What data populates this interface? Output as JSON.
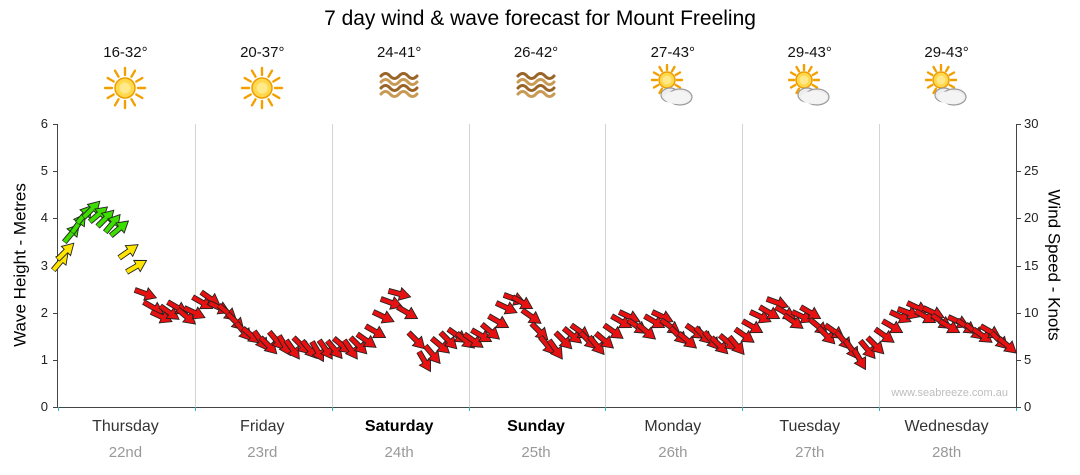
{
  "title": "7 day wind & wave forecast for Mount Freeling",
  "watermark": "www.seabreeze.com.au",
  "days": [
    {
      "name": "Thursday",
      "date": "22nd",
      "temp": "16-32°",
      "icon": "sunny",
      "bold": false
    },
    {
      "name": "Friday",
      "date": "23rd",
      "temp": "20-37°",
      "icon": "sunny",
      "bold": false
    },
    {
      "name": "Saturday",
      "date": "24th",
      "temp": "24-41°",
      "icon": "heat",
      "bold": true
    },
    {
      "name": "Sunday",
      "date": "25th",
      "temp": "26-42°",
      "icon": "heat",
      "bold": true
    },
    {
      "name": "Monday",
      "date": "26th",
      "temp": "27-43°",
      "icon": "partly-cloudy",
      "bold": false
    },
    {
      "name": "Tuesday",
      "date": "27th",
      "temp": "29-43°",
      "icon": "partly-cloudy",
      "bold": false
    },
    {
      "name": "Wednesday",
      "date": "28th",
      "temp": "29-43°",
      "icon": "partly-cloudy",
      "bold": false
    }
  ],
  "axes": {
    "left_label": "Wave Height - Metres",
    "right_label": "Wind Speed - Knots",
    "left_ticks": [
      0,
      1,
      2,
      3,
      4,
      5,
      6
    ],
    "right_ticks": [
      0,
      5,
      10,
      15,
      20,
      25,
      30
    ],
    "left_max": 6,
    "right_max": 30
  },
  "chart_data": {
    "type": "scatter",
    "marker": "wind-arrow",
    "title": "7 day wind & wave forecast for Mount Freeling",
    "x_unit": "days (0 = Thursday 22nd start, 7 = end Wednesday 28th)",
    "x_range": [
      0,
      7
    ],
    "wave_axis_range_m": [
      0,
      6
    ],
    "knots_axis_range": [
      0,
      30
    ],
    "grid": "vertical day boundaries",
    "colors": {
      "r": "#e81111",
      "y": "#ffe400",
      "g": "#3ddd00"
    },
    "color_meaning": {
      "g": "fresh ~17-21kt",
      "y": "moderate ~15-16kt",
      "r": "light <13kt"
    },
    "points": [
      [
        0.02,
        15.5,
        -50,
        "y"
      ],
      [
        0.06,
        16.5,
        -45,
        "y"
      ],
      [
        0.1,
        18.5,
        -50,
        "g"
      ],
      [
        0.15,
        19.5,
        -55,
        "g"
      ],
      [
        0.2,
        20.5,
        -50,
        "g"
      ],
      [
        0.25,
        21,
        -45,
        "g"
      ],
      [
        0.3,
        20.5,
        -40,
        "g"
      ],
      [
        0.35,
        20,
        -45,
        "g"
      ],
      [
        0.4,
        19.5,
        -50,
        "g"
      ],
      [
        0.45,
        19,
        -40,
        "g"
      ],
      [
        0.52,
        16.5,
        -35,
        "y"
      ],
      [
        0.58,
        15,
        -30,
        "y"
      ],
      [
        0.64,
        12,
        20,
        "r"
      ],
      [
        0.7,
        10.5,
        30,
        "r"
      ],
      [
        0.76,
        9.5,
        25,
        "r"
      ],
      [
        0.82,
        10,
        35,
        "r"
      ],
      [
        0.88,
        10.5,
        30,
        "r"
      ],
      [
        0.94,
        9.5,
        40,
        "r"
      ],
      [
        1.0,
        10,
        25,
        "r"
      ],
      [
        1.06,
        11,
        30,
        "r"
      ],
      [
        1.12,
        11.5,
        35,
        "r"
      ],
      [
        1.18,
        10.5,
        25,
        "r"
      ],
      [
        1.24,
        10,
        40,
        "r"
      ],
      [
        1.3,
        9,
        45,
        "r"
      ],
      [
        1.36,
        8,
        50,
        "r"
      ],
      [
        1.42,
        7.5,
        40,
        "r"
      ],
      [
        1.48,
        7,
        55,
        "r"
      ],
      [
        1.54,
        6.5,
        45,
        "r"
      ],
      [
        1.6,
        7,
        50,
        "r"
      ],
      [
        1.66,
        6.5,
        60,
        "r"
      ],
      [
        1.72,
        6,
        55,
        "r"
      ],
      [
        1.78,
        6.5,
        45,
        "r"
      ],
      [
        1.84,
        6,
        50,
        "r"
      ],
      [
        1.9,
        5.8,
        60,
        "r"
      ],
      [
        1.96,
        6,
        55,
        "r"
      ],
      [
        2.02,
        6,
        50,
        "r"
      ],
      [
        2.08,
        6.5,
        40,
        "r"
      ],
      [
        2.14,
        6,
        55,
        "r"
      ],
      [
        2.2,
        6.5,
        45,
        "r"
      ],
      [
        2.26,
        7,
        35,
        "r"
      ],
      [
        2.32,
        8,
        30,
        "r"
      ],
      [
        2.38,
        9.5,
        25,
        "r"
      ],
      [
        2.44,
        11,
        20,
        "r"
      ],
      [
        2.5,
        12,
        15,
        "r"
      ],
      [
        2.56,
        10,
        30,
        "r"
      ],
      [
        2.62,
        7,
        45,
        "r"
      ],
      [
        2.68,
        4.8,
        60,
        "r"
      ],
      [
        2.74,
        5.5,
        50,
        "r"
      ],
      [
        2.8,
        6.5,
        40,
        "r"
      ],
      [
        2.86,
        7,
        45,
        "r"
      ],
      [
        2.92,
        7.5,
        35,
        "r"
      ],
      [
        2.98,
        7,
        40,
        "r"
      ],
      [
        3.04,
        7,
        35,
        "r"
      ],
      [
        3.1,
        7.5,
        30,
        "r"
      ],
      [
        3.16,
        8,
        40,
        "r"
      ],
      [
        3.22,
        9,
        30,
        "r"
      ],
      [
        3.28,
        10.5,
        25,
        "r"
      ],
      [
        3.34,
        11.5,
        20,
        "r"
      ],
      [
        3.4,
        11,
        30,
        "r"
      ],
      [
        3.46,
        9.5,
        35,
        "r"
      ],
      [
        3.52,
        8,
        45,
        "r"
      ],
      [
        3.58,
        6.5,
        50,
        "r"
      ],
      [
        3.64,
        6,
        55,
        "r"
      ],
      [
        3.7,
        7,
        45,
        "r"
      ],
      [
        3.76,
        7.5,
        40,
        "r"
      ],
      [
        3.82,
        8,
        35,
        "r"
      ],
      [
        3.88,
        7,
        45,
        "r"
      ],
      [
        3.94,
        6.5,
        50,
        "r"
      ],
      [
        4.0,
        7,
        40,
        "r"
      ],
      [
        4.06,
        8,
        35,
        "r"
      ],
      [
        4.12,
        9,
        30,
        "r"
      ],
      [
        4.18,
        9.5,
        25,
        "r"
      ],
      [
        4.24,
        8.5,
        35,
        "r"
      ],
      [
        4.3,
        8,
        40,
        "r"
      ],
      [
        4.36,
        9,
        30,
        "r"
      ],
      [
        4.42,
        9.5,
        25,
        "r"
      ],
      [
        4.48,
        8.5,
        35,
        "r"
      ],
      [
        4.54,
        7.5,
        45,
        "r"
      ],
      [
        4.6,
        7,
        40,
        "r"
      ],
      [
        4.66,
        8,
        35,
        "r"
      ],
      [
        4.72,
        7.5,
        45,
        "r"
      ],
      [
        4.78,
        7,
        50,
        "r"
      ],
      [
        4.84,
        6.5,
        45,
        "r"
      ],
      [
        4.9,
        6.8,
        40,
        "r"
      ],
      [
        4.96,
        6.5,
        50,
        "r"
      ],
      [
        5.02,
        7.5,
        35,
        "r"
      ],
      [
        5.08,
        8.5,
        30,
        "r"
      ],
      [
        5.14,
        9.5,
        25,
        "r"
      ],
      [
        5.2,
        10,
        30,
        "r"
      ],
      [
        5.26,
        11,
        20,
        "r"
      ],
      [
        5.32,
        10,
        30,
        "r"
      ],
      [
        5.38,
        9,
        35,
        "r"
      ],
      [
        5.44,
        9.5,
        25,
        "r"
      ],
      [
        5.5,
        10,
        30,
        "r"
      ],
      [
        5.56,
        8.5,
        40,
        "r"
      ],
      [
        5.62,
        7.5,
        45,
        "r"
      ],
      [
        5.68,
        8,
        35,
        "r"
      ],
      [
        5.74,
        7,
        50,
        "r"
      ],
      [
        5.8,
        6,
        55,
        "r"
      ],
      [
        5.86,
        5,
        60,
        "r"
      ],
      [
        5.92,
        6,
        50,
        "r"
      ],
      [
        5.98,
        6.5,
        45,
        "r"
      ],
      [
        6.04,
        7.5,
        35,
        "r"
      ],
      [
        6.1,
        8.5,
        30,
        "r"
      ],
      [
        6.16,
        9.5,
        25,
        "r"
      ],
      [
        6.22,
        10,
        20,
        "r"
      ],
      [
        6.28,
        10.5,
        25,
        "r"
      ],
      [
        6.34,
        9.5,
        30,
        "r"
      ],
      [
        6.4,
        10,
        25,
        "r"
      ],
      [
        6.46,
        9,
        35,
        "r"
      ],
      [
        6.52,
        8.5,
        30,
        "r"
      ],
      [
        6.58,
        9,
        25,
        "r"
      ],
      [
        6.64,
        8.5,
        35,
        "r"
      ],
      [
        6.7,
        8,
        40,
        "r"
      ],
      [
        6.76,
        7.5,
        35,
        "r"
      ],
      [
        6.82,
        8,
        30,
        "r"
      ],
      [
        6.88,
        7,
        45,
        "r"
      ],
      [
        6.94,
        6.5,
        40,
        "r"
      ]
    ]
  }
}
